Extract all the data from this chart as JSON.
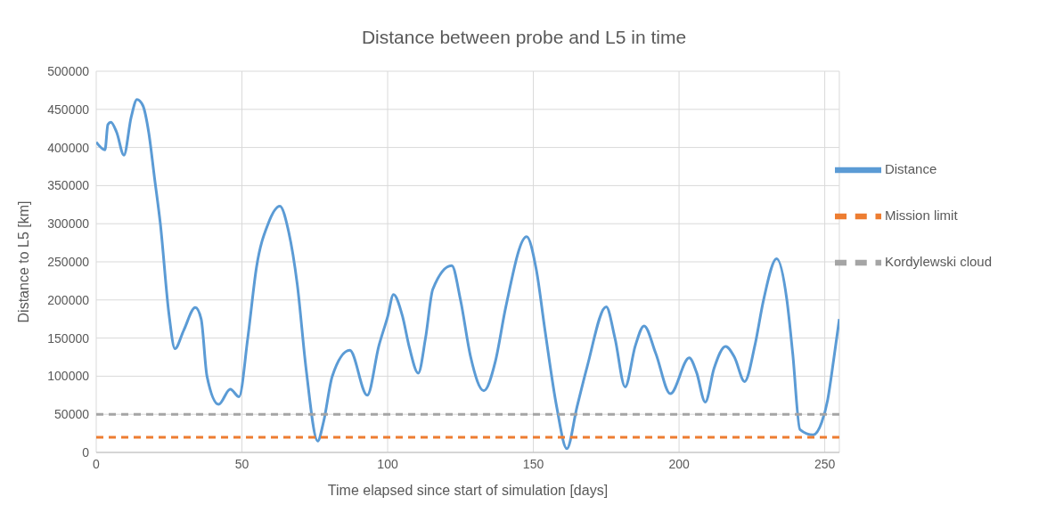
{
  "chart_data": {
    "type": "line",
    "title": "Distance between probe and L5 in time",
    "xlabel": "Time elapsed since start of simulation [days]",
    "ylabel": "Distance to L5 [km]",
    "xlim": [
      0,
      255
    ],
    "xticks": [
      0,
      50,
      100,
      150,
      200,
      250
    ],
    "ylim": [
      0,
      500000
    ],
    "yticks": [
      0,
      50000,
      100000,
      150000,
      200000,
      250000,
      300000,
      350000,
      400000,
      450000,
      500000
    ],
    "grid": true,
    "legend": "top right",
    "marker": "none",
    "series": [
      {
        "name": "Distance",
        "color": "#5b9bd5",
        "line_style": "solid",
        "x": [
          0,
          3,
          4,
          5,
          7,
          9.5,
          12,
          14,
          16,
          18,
          20,
          22,
          25,
          27,
          30,
          34,
          36,
          38,
          42,
          46,
          49,
          52,
          55,
          59,
          63,
          66,
          69,
          72,
          76,
          78,
          81,
          87,
          93,
          97,
          100,
          102,
          105,
          107.5,
          110.5,
          113,
          115.5,
          122,
          125,
          128.5,
          133,
          137,
          140.5,
          147.7,
          151,
          154,
          158,
          161.5,
          165,
          168.5,
          175,
          178,
          181.5,
          185,
          188,
          192,
          197,
          203.5,
          206,
          209,
          212,
          216,
          219,
          222.5,
          226,
          229,
          233.5,
          237,
          239,
          241.5,
          246,
          249,
          251,
          253,
          255
        ],
        "values": [
          407000,
          397000,
          430000,
          433000,
          420000,
          390000,
          440000,
          463000,
          455000,
          420000,
          360000,
          300000,
          180000,
          136000,
          160000,
          190000,
          175000,
          100000,
          63000,
          83000,
          73000,
          150000,
          243000,
          300000,
          323000,
          290000,
          220000,
          110000,
          15000,
          40000,
          100000,
          134000,
          75000,
          140000,
          178000,
          207000,
          180000,
          137000,
          104000,
          150000,
          214000,
          245000,
          200000,
          125000,
          81000,
          120000,
          190000,
          283000,
          240000,
          160000,
          60000,
          5000,
          60000,
          113000,
          191000,
          150000,
          86000,
          140000,
          166000,
          130000,
          77000,
          124000,
          105000,
          66000,
          110000,
          139000,
          125000,
          93000,
          140000,
          200000,
          254000,
          200000,
          130000,
          30000,
          23000,
          40000,
          69000,
          120000,
          175000
        ]
      },
      {
        "name": "Mission limit",
        "color": "#ed7d31",
        "line_style": "dashed",
        "x": [
          0,
          255
        ],
        "values": [
          20000,
          20000
        ]
      },
      {
        "name": "Kordylewski cloud",
        "color": "#a5a5a5",
        "line_style": "dashed",
        "x": [
          0,
          255
        ],
        "values": [
          50000,
          50000
        ]
      }
    ]
  }
}
